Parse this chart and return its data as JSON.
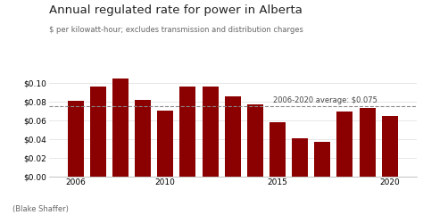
{
  "title": "Annual regulated rate for power in Alberta",
  "subtitle": "$ per kilowatt-hour; excludes transmission and distribution charges",
  "years": [
    2006,
    2007,
    2008,
    2009,
    2010,
    2011,
    2012,
    2013,
    2014,
    2015,
    2016,
    2017,
    2018,
    2019,
    2020
  ],
  "values": [
    0.081,
    0.096,
    0.105,
    0.082,
    0.07,
    0.096,
    0.096,
    0.086,
    0.077,
    0.058,
    0.041,
    0.037,
    0.069,
    0.073,
    0.065
  ],
  "bar_color": "#8B0000",
  "avg_value": 0.075,
  "avg_label": "2006-2020 average: $0.075",
  "avg_line_color": "#888888",
  "ylim": [
    0,
    0.115
  ],
  "yticks": [
    0.0,
    0.02,
    0.04,
    0.06,
    0.08,
    0.1
  ],
  "xticks": [
    2006,
    2010,
    2015,
    2020
  ],
  "background_color": "#ffffff",
  "footer": "(Blake Shaffer)",
  "title_fontsize": 9.5,
  "subtitle_fontsize": 6.0,
  "axis_fontsize": 6.5,
  "footer_fontsize": 6.0
}
